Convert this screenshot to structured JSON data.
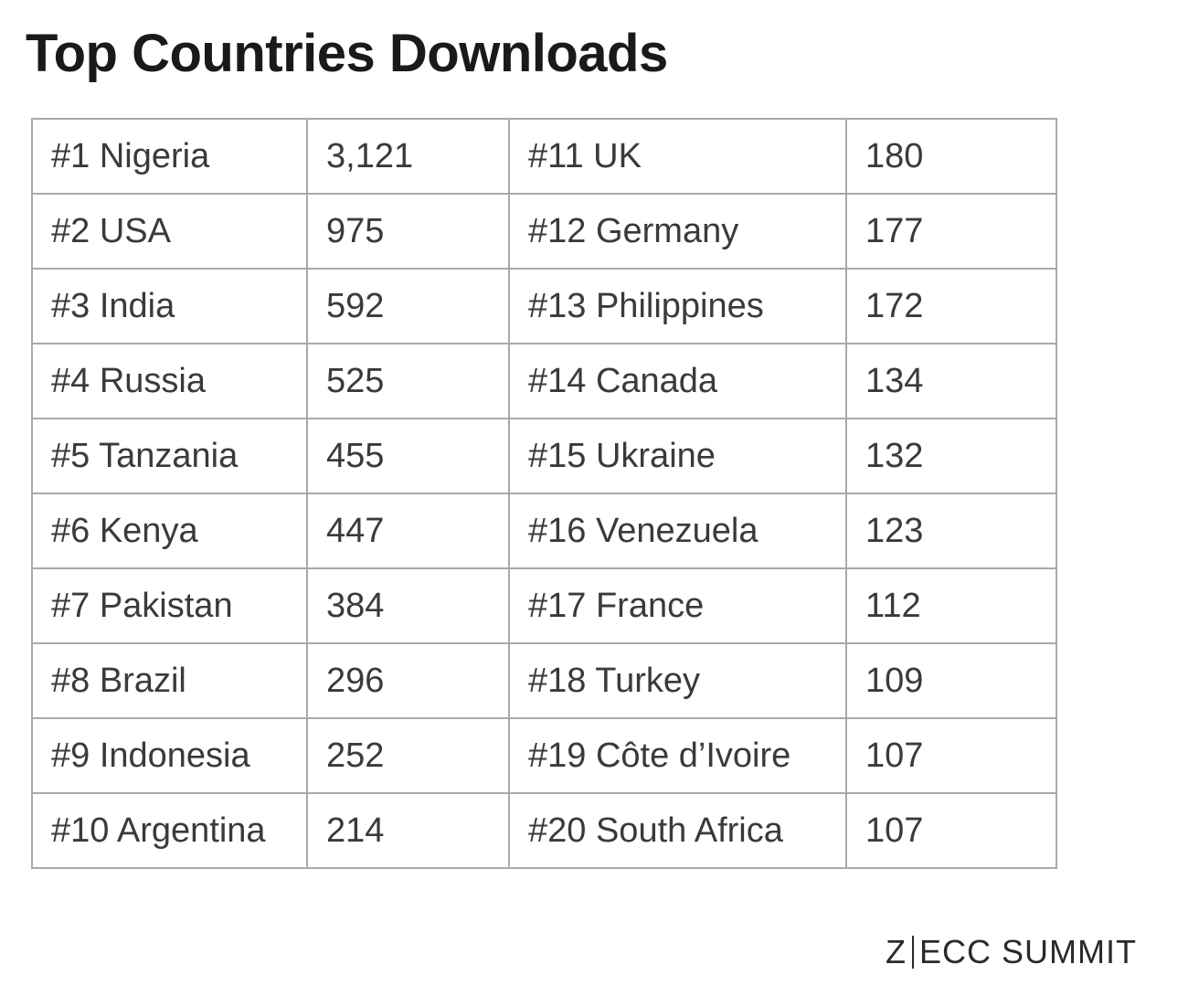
{
  "title": "Top Countries Downloads",
  "table": {
    "rows": [
      {
        "left_country": "#1 Nigeria",
        "left_value": "3,121",
        "right_country": "#11 UK",
        "right_value": "180"
      },
      {
        "left_country": "#2 USA",
        "left_value": "975",
        "right_country": "#12 Germany",
        "right_value": "177"
      },
      {
        "left_country": "#3 India",
        "left_value": "592",
        "right_country": "#13 Philippines",
        "right_value": "172"
      },
      {
        "left_country": "#4 Russia",
        "left_value": "525",
        "right_country": "#14 Canada",
        "right_value": "134"
      },
      {
        "left_country": "#5 Tanzania",
        "left_value": "455",
        "right_country": "#15 Ukraine",
        "right_value": "132"
      },
      {
        "left_country": "#6 Kenya",
        "left_value": "447",
        "right_country": "#16 Venezuela",
        "right_value": "123"
      },
      {
        "left_country": "#7 Pakistan",
        "left_value": "384",
        "right_country": "#17 France",
        "right_value": "112"
      },
      {
        "left_country": "#8 Brazil",
        "left_value": "296",
        "right_country": "#18 Turkey",
        "right_value": "109"
      },
      {
        "left_country": "#9 Indonesia",
        "left_value": "252",
        "right_country": "#19 Côte d’Ivoire",
        "right_value": "107"
      },
      {
        "left_country": "#10 Argentina",
        "left_value": "214",
        "right_country": "#20 South Africa",
        "right_value": "107"
      }
    ]
  },
  "footer": {
    "logo_left": "Z",
    "logo_right": "ECC SUMMIT"
  },
  "colors": {
    "border": "#a9a9a9",
    "text": "#3a3a3a",
    "title": "#1a1a1a"
  }
}
